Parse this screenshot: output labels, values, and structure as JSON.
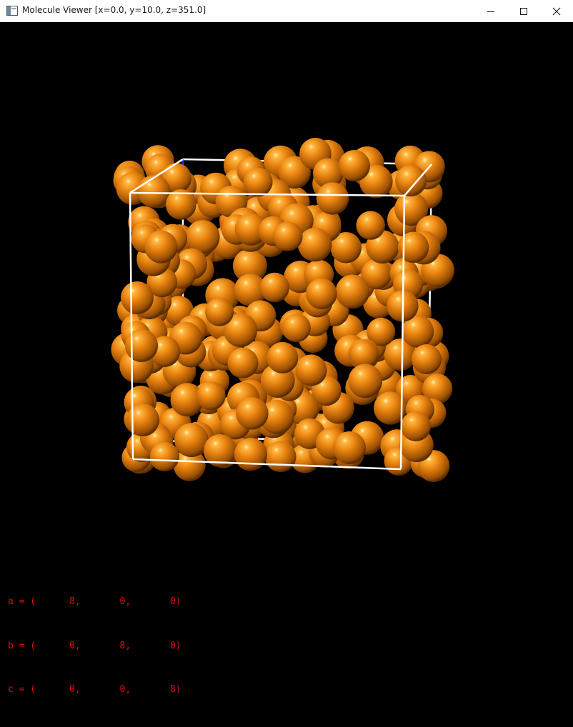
{
  "window": {
    "title": "Molecule Viewer [x=0.0, y=10.0, z=351.0]",
    "controls": [
      "minimize",
      "maximize",
      "close"
    ]
  },
  "viewport": {
    "background": "#000000",
    "atom_color": "#e8820f",
    "cell_edge_color": "#ffffff",
    "axis_colors": {
      "a": "#ff2020",
      "b": "#20c020",
      "c": "#2020ff"
    }
  },
  "cell_vectors": [
    "a = (      8,       0,       0)",
    "b = (      0,       8,       0)",
    "c = (      0,       0,       8)"
  ],
  "text_color": "#e01010"
}
